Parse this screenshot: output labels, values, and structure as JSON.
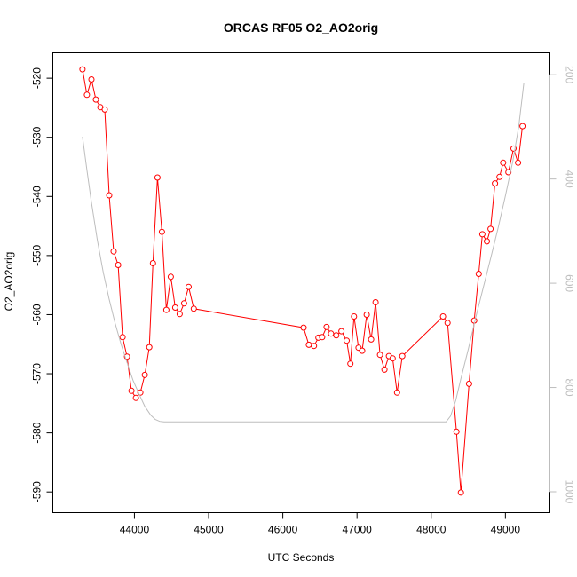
{
  "chart_data": {
    "type": "line",
    "title": "ORCAS RF05 O2_AO2orig",
    "xlabel": "UTC Seconds",
    "ylabel": "O2_AO2orig",
    "xlim": [
      42900,
      49600
    ],
    "ylim": [
      -593.5,
      -515.7
    ],
    "y2lim": [
      1040,
      158
    ],
    "y2_reversed": true,
    "x_ticks": [
      44000,
      45000,
      46000,
      47000,
      48000,
      49000
    ],
    "x_tick_labels": [
      "44000",
      "45000",
      "46000",
      "47000",
      "48000",
      "49000"
    ],
    "y_ticks": [
      -520,
      -530,
      -540,
      -550,
      -560,
      -570,
      -580,
      -590
    ],
    "y_tick_labels": [
      "-520",
      "-530",
      "-540",
      "-550",
      "-560",
      "-570",
      "-580",
      "-590"
    ],
    "y2_ticks": [
      200,
      400,
      600,
      800,
      1000
    ],
    "y2_tick_labels": [
      "200",
      "400",
      "600",
      "800",
      "1000"
    ],
    "colors": {
      "series": "#ff0000",
      "secondary": "#bdbdbd",
      "axis": "#000000"
    },
    "series": [
      {
        "color": "#ff0000",
        "marker": "open-circle",
        "x": [
          43300,
          43360,
          43420,
          43480,
          43540,
          43600,
          43660,
          43720,
          43780,
          43840,
          43900,
          43960,
          44020,
          44080,
          44140,
          44200,
          44250,
          44310,
          44370,
          44430,
          44490,
          44550,
          44610,
          44670,
          44730,
          44800,
          46280,
          46350,
          46420,
          46480,
          46530,
          46590,
          46650,
          46720,
          46790,
          46860,
          46910,
          46960,
          47020,
          47070,
          47130,
          47190,
          47250,
          47310,
          47370,
          47430,
          47480,
          47540,
          47610,
          48160,
          48220,
          48340,
          48400,
          48510,
          48580,
          48640,
          48690,
          48750,
          48800,
          48860,
          48920,
          48970,
          49040,
          49110,
          49170,
          49230
        ],
        "y": [
          -518.5,
          -522.8,
          -520.2,
          -523.6,
          -524.9,
          -525.3,
          -539.8,
          -549.3,
          -551.6,
          -563.8,
          -567.1,
          -572.9,
          -574.1,
          -573.2,
          -570.2,
          -565.5,
          -551.3,
          -536.8,
          -546.0,
          -559.2,
          -553.6,
          -558.8,
          -559.9,
          -558.1,
          -555.3,
          -559.0,
          -562.2,
          -565.1,
          -565.3,
          -563.9,
          -563.8,
          -562.1,
          -563.2,
          -563.5,
          -562.8,
          -564.4,
          -568.3,
          -560.3,
          -565.6,
          -566.1,
          -560.0,
          -564.2,
          -557.9,
          -566.8,
          -569.3,
          -567.0,
          -567.4,
          -573.2,
          -567.0,
          -560.3,
          -561.4,
          -579.8,
          -590.1,
          -571.7,
          -561.0,
          -553.1,
          -546.4,
          -547.6,
          -545.5,
          -537.8,
          -536.7,
          -534.3,
          -535.9,
          -531.9,
          -534.3,
          -528.1
        ]
      },
      {
        "color": "#bdbdbd",
        "axis": "right",
        "x": [
          43300,
          43360,
          43420,
          43500,
          43580,
          43660,
          43740,
          43820,
          43900,
          43980,
          44060,
          44140,
          44220,
          44280,
          44340,
          44400,
          46000,
          48000,
          48200,
          48260,
          48330,
          48400,
          48500,
          48600,
          48700,
          48800,
          48900,
          49000,
          49100,
          49180,
          49250
        ],
        "y": [
          319,
          383,
          445,
          517,
          579,
          631,
          677,
          717,
          752,
          786,
          812,
          836,
          853,
          861,
          865,
          866,
          866,
          866,
          866,
          855,
          825,
          783,
          726,
          666,
          609,
          553,
          495,
          432,
          366,
          299,
          215
        ]
      }
    ]
  }
}
